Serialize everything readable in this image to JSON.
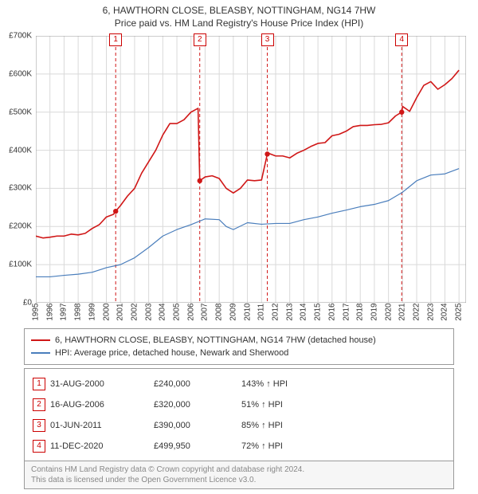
{
  "title_line1": "6, HAWTHORN CLOSE, BLEASBY, NOTTINGHAM, NG14 7HW",
  "title_line2": "Price paid vs. HM Land Registry's House Price Index (HPI)",
  "chart": {
    "type": "line",
    "background_color": "#ffffff",
    "grid_color": "#d9d9d9",
    "axis_color": "#9a9a9a",
    "tick_fontsize": 10,
    "x": {
      "min": 1995,
      "max": 2025.5,
      "tick_step": 1,
      "tick_labels": [
        "1995",
        "1996",
        "1997",
        "1998",
        "1999",
        "2000",
        "2001",
        "2002",
        "2003",
        "2004",
        "2005",
        "2006",
        "2007",
        "2008",
        "2009",
        "2010",
        "2011",
        "2012",
        "2013",
        "2014",
        "2015",
        "2016",
        "2017",
        "2018",
        "2019",
        "2020",
        "2021",
        "2022",
        "2023",
        "2024",
        "2025"
      ]
    },
    "y": {
      "min": 0,
      "max": 700000,
      "tick_step": 100000,
      "tick_labels": [
        "£0",
        "£100K",
        "£200K",
        "£300K",
        "£400K",
        "£500K",
        "£600K",
        "£700K"
      ]
    },
    "series": [
      {
        "name": "property",
        "color": "#d01717",
        "stroke_width": 1.6,
        "points": [
          [
            1995.0,
            175000
          ],
          [
            1995.5,
            170000
          ],
          [
            1996.0,
            172000
          ],
          [
            1996.5,
            175000
          ],
          [
            1997.0,
            175000
          ],
          [
            1997.5,
            180000
          ],
          [
            1998.0,
            178000
          ],
          [
            1998.5,
            182000
          ],
          [
            1999.0,
            195000
          ],
          [
            1999.5,
            205000
          ],
          [
            2000.0,
            225000
          ],
          [
            2000.5,
            232000
          ],
          [
            2000.66,
            240000
          ],
          [
            2001.0,
            255000
          ],
          [
            2001.5,
            280000
          ],
          [
            2002.0,
            300000
          ],
          [
            2002.5,
            340000
          ],
          [
            2003.0,
            370000
          ],
          [
            2003.5,
            400000
          ],
          [
            2004.0,
            440000
          ],
          [
            2004.5,
            470000
          ],
          [
            2005.0,
            470000
          ],
          [
            2005.5,
            480000
          ],
          [
            2006.0,
            500000
          ],
          [
            2006.5,
            510000
          ],
          [
            2006.62,
            320000
          ],
          [
            2007.0,
            330000
          ],
          [
            2007.5,
            333000
          ],
          [
            2008.0,
            326000
          ],
          [
            2008.5,
            300000
          ],
          [
            2009.0,
            288000
          ],
          [
            2009.5,
            300000
          ],
          [
            2010.0,
            322000
          ],
          [
            2010.5,
            320000
          ],
          [
            2011.0,
            322000
          ],
          [
            2011.41,
            390000
          ],
          [
            2011.5,
            392000
          ],
          [
            2012.0,
            385000
          ],
          [
            2012.5,
            385000
          ],
          [
            2013.0,
            380000
          ],
          [
            2013.5,
            392000
          ],
          [
            2014.0,
            400000
          ],
          [
            2014.5,
            410000
          ],
          [
            2015.0,
            418000
          ],
          [
            2015.5,
            420000
          ],
          [
            2016.0,
            438000
          ],
          [
            2016.5,
            442000
          ],
          [
            2017.0,
            450000
          ],
          [
            2017.5,
            462000
          ],
          [
            2018.0,
            465000
          ],
          [
            2018.5,
            465000
          ],
          [
            2019.0,
            467000
          ],
          [
            2019.5,
            468000
          ],
          [
            2020.0,
            472000
          ],
          [
            2020.5,
            490000
          ],
          [
            2020.94,
            499950
          ],
          [
            2021.0,
            515000
          ],
          [
            2021.5,
            502000
          ],
          [
            2022.0,
            538000
          ],
          [
            2022.5,
            570000
          ],
          [
            2023.0,
            580000
          ],
          [
            2023.5,
            560000
          ],
          [
            2024.0,
            572000
          ],
          [
            2024.5,
            588000
          ],
          [
            2025.0,
            610000
          ]
        ]
      },
      {
        "name": "hpi",
        "color": "#4a7ebc",
        "stroke_width": 1.2,
        "points": [
          [
            1995.0,
            68000
          ],
          [
            1996.0,
            68000
          ],
          [
            1997.0,
            72000
          ],
          [
            1998.0,
            75000
          ],
          [
            1999.0,
            80000
          ],
          [
            2000.0,
            92000
          ],
          [
            2001.0,
            100000
          ],
          [
            2002.0,
            118000
          ],
          [
            2003.0,
            145000
          ],
          [
            2004.0,
            175000
          ],
          [
            2005.0,
            192000
          ],
          [
            2006.0,
            205000
          ],
          [
            2007.0,
            220000
          ],
          [
            2008.0,
            218000
          ],
          [
            2008.5,
            200000
          ],
          [
            2009.0,
            192000
          ],
          [
            2010.0,
            210000
          ],
          [
            2011.0,
            206000
          ],
          [
            2012.0,
            208000
          ],
          [
            2013.0,
            208000
          ],
          [
            2014.0,
            218000
          ],
          [
            2015.0,
            225000
          ],
          [
            2016.0,
            235000
          ],
          [
            2017.0,
            243000
          ],
          [
            2018.0,
            252000
          ],
          [
            2019.0,
            258000
          ],
          [
            2020.0,
            268000
          ],
          [
            2021.0,
            290000
          ],
          [
            2022.0,
            320000
          ],
          [
            2023.0,
            335000
          ],
          [
            2024.0,
            338000
          ],
          [
            2025.0,
            352000
          ]
        ]
      }
    ],
    "vlines": {
      "color": "#d01717",
      "dash": "4,3",
      "stroke_width": 1,
      "x": [
        2000.66,
        2006.62,
        2011.41,
        2020.94
      ]
    },
    "sale_markers": {
      "color": "#d01717",
      "radius": 3.2,
      "label_bg": "#ffffff",
      "label_border": "#cc0000",
      "items": [
        {
          "n": "1",
          "x": 2000.66,
          "y": 240000
        },
        {
          "n": "2",
          "x": 2006.62,
          "y": 320000
        },
        {
          "n": "3",
          "x": 2011.41,
          "y": 390000
        },
        {
          "n": "4",
          "x": 2020.94,
          "y": 499950
        }
      ]
    }
  },
  "legend": {
    "border_color": "#9a9a9a",
    "items": [
      {
        "color": "#d01717",
        "label": "6, HAWTHORN CLOSE, BLEASBY, NOTTINGHAM, NG14 7HW (detached house)"
      },
      {
        "color": "#4a7ebc",
        "label": "HPI: Average price, detached house, Newark and Sherwood"
      }
    ]
  },
  "sales_table": {
    "border_color": "#9a9a9a",
    "marker_color": "#cc0000",
    "rows": [
      {
        "n": "1",
        "date": "31-AUG-2000",
        "price": "£240,000",
        "delta": "143%",
        "suffix": "HPI"
      },
      {
        "n": "2",
        "date": "16-AUG-2006",
        "price": "£320,000",
        "delta": "51%",
        "suffix": "HPI"
      },
      {
        "n": "3",
        "date": "01-JUN-2011",
        "price": "£390,000",
        "delta": "85%",
        "suffix": "HPI"
      },
      {
        "n": "4",
        "date": "11-DEC-2020",
        "price": "£499,950",
        "delta": "72%",
        "suffix": "HPI"
      }
    ]
  },
  "footer": {
    "bg": "#f6f6f6",
    "color": "#888888",
    "line1": "Contains HM Land Registry data © Crown copyright and database right 2024.",
    "line2": "This data is licensed under the Open Government Licence v3.0."
  }
}
